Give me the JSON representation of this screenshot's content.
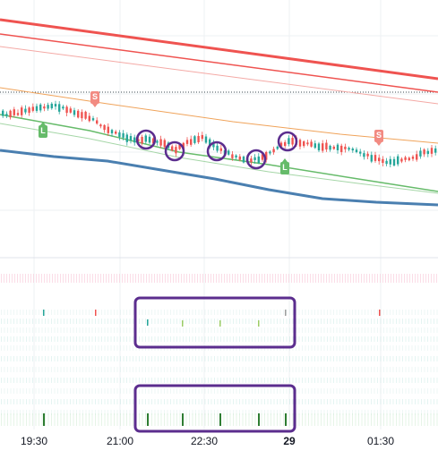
{
  "time_axis": {
    "labels": [
      {
        "text": "19:30",
        "bold": false
      },
      {
        "text": "21:00",
        "bold": false
      },
      {
        "text": "22:30",
        "bold": false
      },
      {
        "text": "29",
        "bold": true
      },
      {
        "text": "01:30",
        "bold": false
      }
    ]
  },
  "signals": [
    {
      "type": "sell",
      "text": "S"
    },
    {
      "type": "buy",
      "text": "L"
    },
    {
      "type": "buy",
      "text": "L"
    },
    {
      "type": "sell",
      "text": "S"
    }
  ],
  "colors": {
    "bull": "#26a69a",
    "bear": "#ef5350",
    "band_upper": "#ef5350",
    "band_lower": "#4a7fb0",
    "ma_orange": "#f0a35a",
    "ma_green": "#66bb6a",
    "highlight": "#5b2d8e",
    "grid": "#eef0f3"
  },
  "annotations": {
    "highlighted_candles": 5,
    "highlight_boxes": 2
  }
}
